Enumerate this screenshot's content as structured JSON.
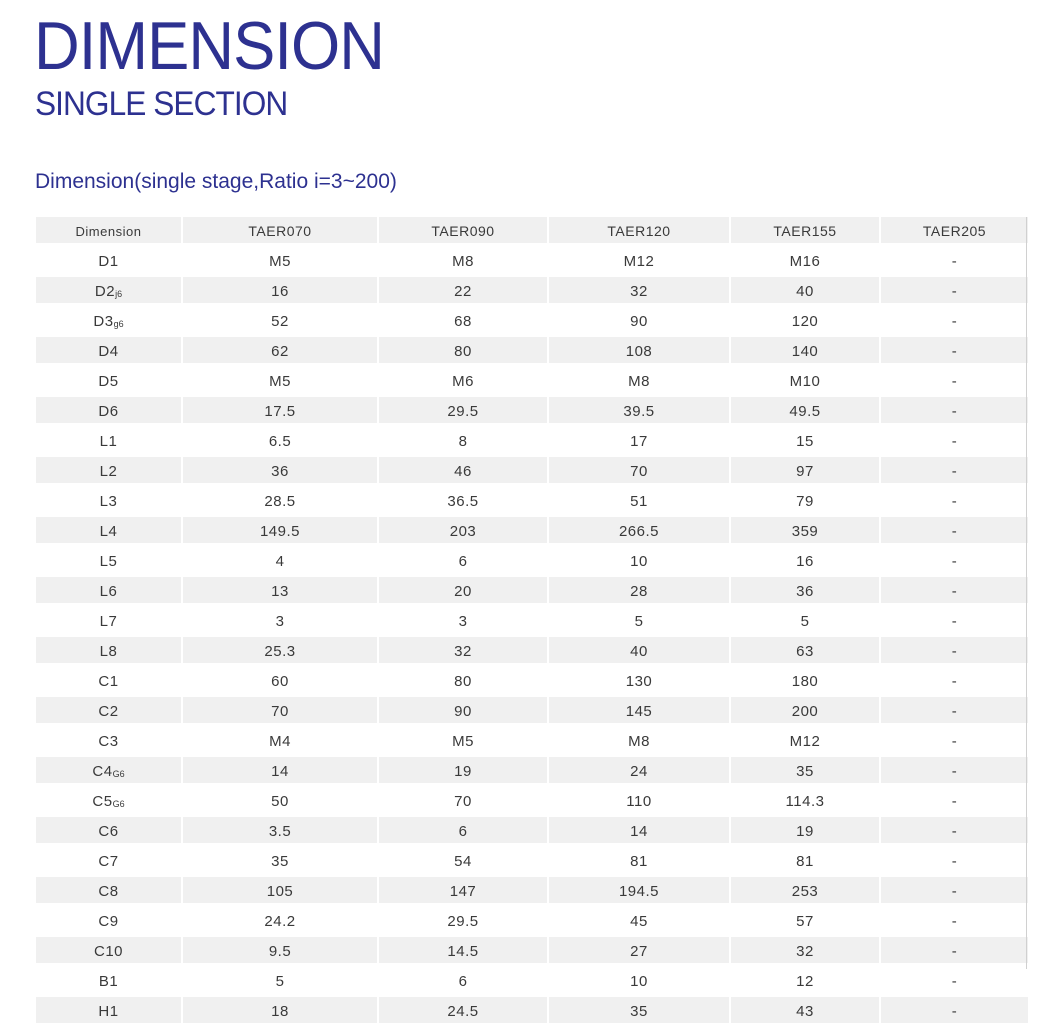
{
  "header": {
    "title": "DIMENSION",
    "subtitle": "SINGLE SECTION",
    "table_caption": "Dimension(single stage,Ratio i=3~200)"
  },
  "table": {
    "columns": [
      "Dimension",
      "TAER070",
      "TAER090",
      "TAER120",
      "TAER155",
      "TAER205"
    ],
    "rows": [
      {
        "name": "D1",
        "sub": "",
        "values": [
          "M5",
          "M8",
          "M12",
          "M16",
          "-"
        ]
      },
      {
        "name": "D2",
        "sub": "j6",
        "values": [
          "16",
          "22",
          "32",
          "40",
          "-"
        ]
      },
      {
        "name": "D3",
        "sub": "g6",
        "values": [
          "52",
          "68",
          "90",
          "120",
          "-"
        ]
      },
      {
        "name": "D4",
        "sub": "",
        "values": [
          "62",
          "80",
          "108",
          "140",
          "-"
        ]
      },
      {
        "name": "D5",
        "sub": "",
        "values": [
          "M5",
          "M6",
          "M8",
          "M10",
          "-"
        ]
      },
      {
        "name": "D6",
        "sub": "",
        "values": [
          "17.5",
          "29.5",
          "39.5",
          "49.5",
          "-"
        ]
      },
      {
        "name": "L1",
        "sub": "",
        "values": [
          "6.5",
          "8",
          "17",
          "15",
          "-"
        ]
      },
      {
        "name": "L2",
        "sub": "",
        "values": [
          "36",
          "46",
          "70",
          "97",
          "-"
        ]
      },
      {
        "name": "L3",
        "sub": "",
        "values": [
          "28.5",
          "36.5",
          "51",
          "79",
          "-"
        ]
      },
      {
        "name": "L4",
        "sub": "",
        "values": [
          "149.5",
          "203",
          "266.5",
          "359",
          "-"
        ]
      },
      {
        "name": "L5",
        "sub": "",
        "values": [
          "4",
          "6",
          "10",
          "16",
          "-"
        ]
      },
      {
        "name": "L6",
        "sub": "",
        "values": [
          "13",
          "20",
          "28",
          "36",
          "-"
        ]
      },
      {
        "name": "L7",
        "sub": "",
        "values": [
          "3",
          "3",
          "5",
          "5",
          "-"
        ]
      },
      {
        "name": "L8",
        "sub": "",
        "values": [
          "25.3",
          "32",
          "40",
          "63",
          "-"
        ]
      },
      {
        "name": "C1",
        "sub": "",
        "values": [
          "60",
          "80",
          "130",
          "180",
          "-"
        ]
      },
      {
        "name": "C2",
        "sub": "",
        "values": [
          "70",
          "90",
          "145",
          "200",
          "-"
        ]
      },
      {
        "name": "C3",
        "sub": "",
        "values": [
          "M4",
          "M5",
          "M8",
          "M12",
          "-"
        ]
      },
      {
        "name": "C4",
        "sub": "G6",
        "values": [
          "14",
          "19",
          "24",
          "35",
          "-"
        ]
      },
      {
        "name": "C5",
        "sub": "G6",
        "values": [
          "50",
          "70",
          "110",
          "114.3",
          "-"
        ]
      },
      {
        "name": "C6",
        "sub": "",
        "values": [
          "3.5",
          "6",
          "14",
          "19",
          "-"
        ]
      },
      {
        "name": "C7",
        "sub": "",
        "values": [
          "35",
          "54",
          "81",
          "81",
          "-"
        ]
      },
      {
        "name": "C8",
        "sub": "",
        "values": [
          "105",
          "147",
          "194.5",
          "253",
          "-"
        ]
      },
      {
        "name": "C9",
        "sub": "",
        "values": [
          "24.2",
          "29.5",
          "45",
          "57",
          "-"
        ]
      },
      {
        "name": "C10",
        "sub": "",
        "values": [
          "9.5",
          "14.5",
          "27",
          "32",
          "-"
        ]
      },
      {
        "name": "B1",
        "sub": "",
        "values": [
          "5",
          "6",
          "10",
          "12",
          "-"
        ]
      },
      {
        "name": "H1",
        "sub": "",
        "values": [
          "18",
          "24.5",
          "35",
          "43",
          "-"
        ]
      }
    ]
  },
  "colors": {
    "heading": "#2d3190",
    "row_shade": "#f0f0f0",
    "text": "#3a3a3a"
  }
}
